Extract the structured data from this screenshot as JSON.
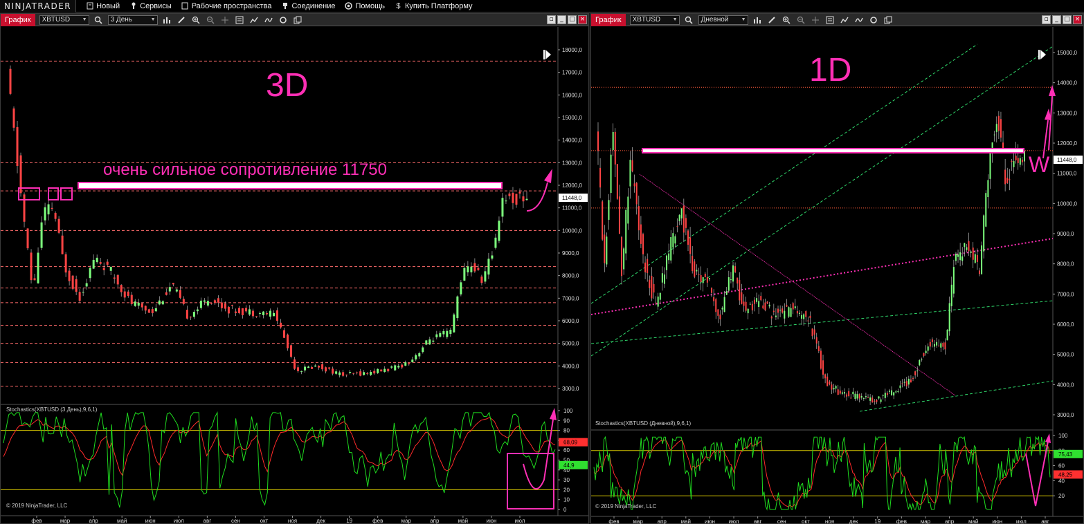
{
  "app": {
    "brand": "NINJATRADER"
  },
  "menu": [
    {
      "label": "Новый",
      "icon": "new-icon"
    },
    {
      "label": "Сервисы",
      "icon": "tools-icon"
    },
    {
      "label": "Рабочие пространства",
      "icon": "workspace-icon"
    },
    {
      "label": "Соединение",
      "icon": "connection-icon"
    },
    {
      "label": "Помощь",
      "icon": "help-icon"
    },
    {
      "label": "Купить Платформу",
      "icon": "dollar-icon"
    }
  ],
  "panels": [
    {
      "tab": "График",
      "instrument": "XBTUSD",
      "period": "3 День",
      "overlay_label": "3D",
      "annotation": "очень сильное сопротивление 11750",
      "price_ticks": [
        "18000,0",
        "17000,0",
        "16000,0",
        "15000,0",
        "14000,0",
        "13000,0",
        "12000,0",
        "11000,0",
        "10000,0",
        "9000,0",
        "8000,0",
        "7000,0",
        "6000,0",
        "5000,0",
        "4000,0",
        "3000,0"
      ],
      "last_price": "11448,0",
      "indicator_title": "Stochastics(XBTUSD (3 День),9,6,1)",
      "indicator_ticks": [
        "100",
        "90",
        "80",
        "70",
        "60",
        "50",
        "40",
        "30",
        "20",
        "10",
        "0"
      ],
      "indicator_badges": [
        "68,09",
        "44,9"
      ],
      "copyright": "© 2019 NinjaTrader, LLC",
      "date_labels": [
        "фев",
        "мар",
        "апр",
        "май",
        "июн",
        "июл",
        "авг",
        "сен",
        "окт",
        "ноя",
        "дек",
        "19",
        "фев",
        "мар",
        "апр",
        "май",
        "июн",
        "июл"
      ],
      "colors": {
        "support_lines": "#ff6b6b",
        "annotation": "#ff2fb5",
        "up": "#7dff7d",
        "down": "#ff4444"
      }
    },
    {
      "tab": "График",
      "instrument": "XBTUSD",
      "period": "Дневной",
      "overlay_label": "1D",
      "overlay_sub": "W",
      "price_ticks": [
        "15000,0",
        "14000,0",
        "13000,0",
        "12000,0",
        "11000,0",
        "10000,0",
        "9000,0",
        "8000,0",
        "7000,0",
        "6000,0",
        "5000,0",
        "4000,0",
        "3000,0"
      ],
      "last_price": "11448,0",
      "indicator_title": "Stochastics(XBTUSD (Дневной),9,6,1)",
      "indicator_ticks": [
        "100",
        "80",
        "60",
        "40",
        "20"
      ],
      "indicator_badges": [
        "75,43",
        "48,25"
      ],
      "copyright": "© 2019 NinjaTrader, LLC",
      "date_labels": [
        "фев",
        "мар",
        "апр",
        "май",
        "июн",
        "июл",
        "авг",
        "сен",
        "окт",
        "ноя",
        "дек",
        "19",
        "фев",
        "мар",
        "апр",
        "май",
        "июн",
        "июл",
        "авг"
      ],
      "colors": {
        "channel": "#2fd66a",
        "trend": "#ff2fb5"
      }
    }
  ]
}
